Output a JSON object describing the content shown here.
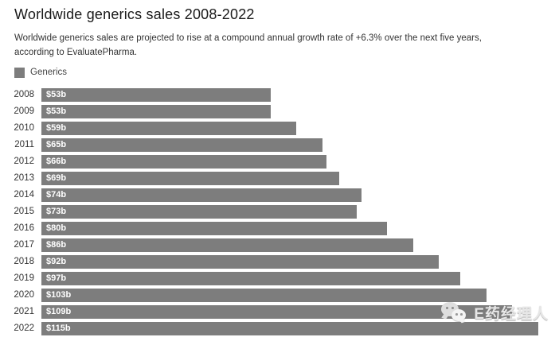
{
  "header": {
    "title": "Worldwide generics sales 2008-2022",
    "subtitle": "Worldwide generics sales are projected to rise at a compound annual growth rate of +6.3% over the next five years, according to EvaluatePharma."
  },
  "legend": {
    "label": "Generics"
  },
  "chart_data": {
    "type": "bar",
    "orientation": "horizontal",
    "title": "Worldwide generics sales 2008-2022",
    "series_name": "Generics",
    "categories": [
      "2008",
      "2009",
      "2010",
      "2011",
      "2012",
      "2013",
      "2014",
      "2015",
      "2016",
      "2017",
      "2018",
      "2019",
      "2020",
      "2021",
      "2022"
    ],
    "values": [
      53,
      53,
      59,
      65,
      66,
      69,
      74,
      73,
      80,
      86,
      92,
      97,
      103,
      109,
      115
    ],
    "value_labels": [
      "$53b",
      "$53b",
      "$59b",
      "$65b",
      "$66b",
      "$69b",
      "$74b",
      "$73b",
      "$80b",
      "$86b",
      "$92b",
      "$97b",
      "$103b",
      "$109b",
      "$115b"
    ],
    "xlim": [
      0,
      115
    ],
    "xlabel": "",
    "ylabel": "",
    "grid": false,
    "legend_position": "top-left",
    "value_labels_inside_bars": true
  },
  "watermark": {
    "text": "E药经理人",
    "icon": "wechat-icon"
  },
  "colors": {
    "bar": "#7d7d7d",
    "title": "#1a1a1a",
    "body_text": "#333333",
    "value_label": "#ffffff",
    "watermark_text": "#e7e7e7",
    "background": "#ffffff"
  }
}
